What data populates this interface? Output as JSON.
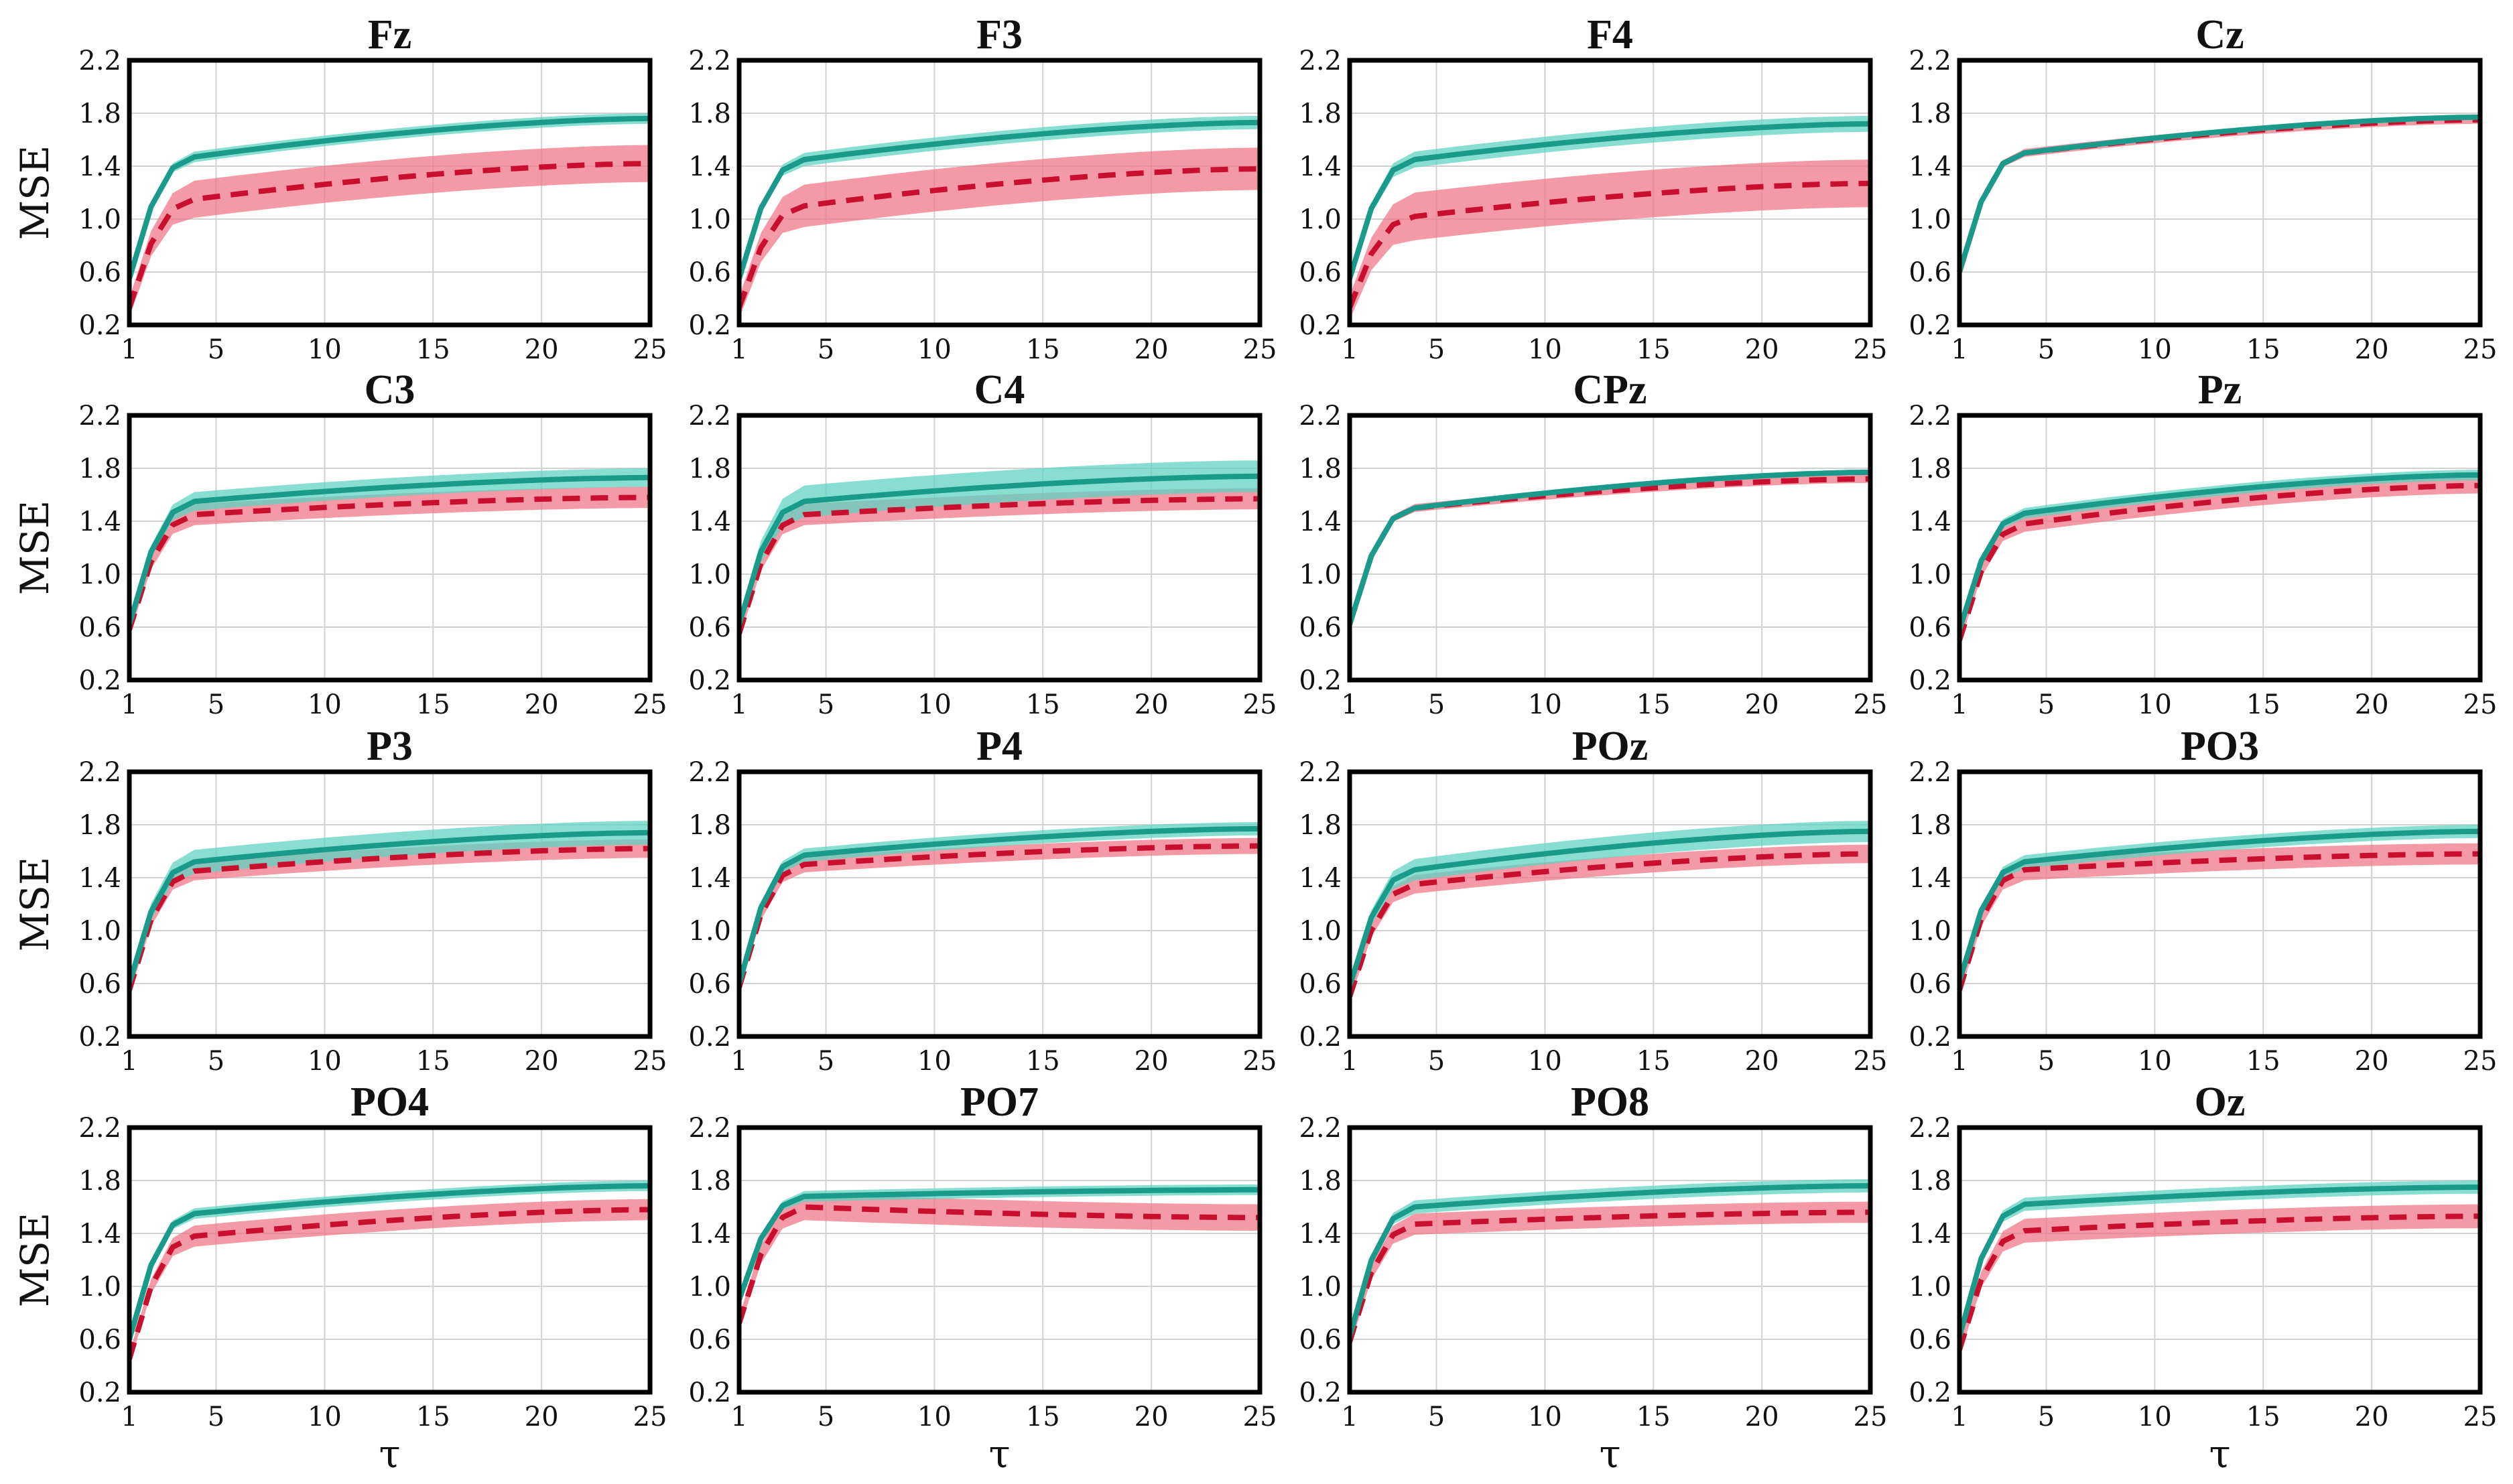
{
  "chart_data": {
    "type": "line",
    "layout": "4x4 small multiples",
    "x": [
      1,
      2,
      3,
      4,
      5,
      6,
      7,
      8,
      9,
      10,
      11,
      12,
      13,
      14,
      15,
      16,
      17,
      18,
      19,
      20,
      21,
      22,
      23,
      24,
      25
    ],
    "xlabel": "τ",
    "ylabel": "MSE",
    "xlim": [
      1,
      25
    ],
    "ylim": [
      0.2,
      2.2
    ],
    "xticks": [
      1,
      5,
      10,
      15,
      20,
      25
    ],
    "yticks": [
      "0.2",
      "0.6",
      "1.0",
      "1.4",
      "1.8",
      "2.2"
    ],
    "grid": true,
    "series_styles": {
      "A": {
        "color": "#1a9a8a",
        "band_color": "#5fd3c2",
        "dash": "solid"
      },
      "B": {
        "color": "#c8102e",
        "band_color": "#f0788a",
        "dash": "dashed"
      }
    },
    "panels": [
      {
        "title": "Fz",
        "A": {
          "start": 0.55,
          "plateau": 1.47,
          "end": 1.76,
          "band": 0.04
        },
        "B": {
          "start": 0.33,
          "plateau": 1.15,
          "end": 1.42,
          "band": 0.14
        }
      },
      {
        "title": "F3",
        "A": {
          "start": 0.55,
          "plateau": 1.45,
          "end": 1.73,
          "band": 0.05
        },
        "B": {
          "start": 0.33,
          "plateau": 1.1,
          "end": 1.38,
          "band": 0.16
        }
      },
      {
        "title": "F4",
        "A": {
          "start": 0.55,
          "plateau": 1.45,
          "end": 1.72,
          "band": 0.06
        },
        "B": {
          "start": 0.33,
          "plateau": 1.02,
          "end": 1.27,
          "band": 0.18
        }
      },
      {
        "title": "Cz",
        "A": {
          "start": 0.6,
          "plateau": 1.5,
          "end": 1.77,
          "band": 0.02
        },
        "B": {
          "start": 0.6,
          "plateau": 1.5,
          "end": 1.75,
          "band": 0.03
        }
      },
      {
        "title": "C3",
        "A": {
          "start": 0.62,
          "plateau": 1.55,
          "end": 1.73,
          "band": 0.07
        },
        "B": {
          "start": 0.58,
          "plateau": 1.45,
          "end": 1.58,
          "band": 0.08
        }
      },
      {
        "title": "C4",
        "A": {
          "start": 0.62,
          "plateau": 1.55,
          "end": 1.74,
          "band": 0.12
        },
        "B": {
          "start": 0.55,
          "plateau": 1.45,
          "end": 1.57,
          "band": 0.08
        }
      },
      {
        "title": "CPz",
        "A": {
          "start": 0.62,
          "plateau": 1.5,
          "end": 1.77,
          "band": 0.02
        },
        "B": {
          "start": 0.62,
          "plateau": 1.5,
          "end": 1.72,
          "band": 0.03
        }
      },
      {
        "title": "Pz",
        "A": {
          "start": 0.58,
          "plateau": 1.46,
          "end": 1.75,
          "band": 0.04
        },
        "B": {
          "start": 0.5,
          "plateau": 1.38,
          "end": 1.67,
          "band": 0.06
        }
      },
      {
        "title": "P3",
        "A": {
          "start": 0.6,
          "plateau": 1.52,
          "end": 1.74,
          "band": 0.09
        },
        "B": {
          "start": 0.55,
          "plateau": 1.45,
          "end": 1.62,
          "band": 0.07
        }
      },
      {
        "title": "P4",
        "A": {
          "start": 0.6,
          "plateau": 1.57,
          "end": 1.77,
          "band": 0.05
        },
        "B": {
          "start": 0.57,
          "plateau": 1.5,
          "end": 1.64,
          "band": 0.06
        }
      },
      {
        "title": "POz",
        "A": {
          "start": 0.58,
          "plateau": 1.46,
          "end": 1.75,
          "band": 0.08
        },
        "B": {
          "start": 0.5,
          "plateau": 1.35,
          "end": 1.58,
          "band": 0.07
        }
      },
      {
        "title": "PO3",
        "A": {
          "start": 0.62,
          "plateau": 1.52,
          "end": 1.75,
          "band": 0.05
        },
        "B": {
          "start": 0.55,
          "plateau": 1.46,
          "end": 1.58,
          "band": 0.08
        }
      },
      {
        "title": "PO4",
        "A": {
          "start": 0.6,
          "plateau": 1.55,
          "end": 1.76,
          "band": 0.04
        },
        "B": {
          "start": 0.45,
          "plateau": 1.38,
          "end": 1.58,
          "band": 0.08
        }
      },
      {
        "title": "PO7",
        "A": {
          "start": 0.9,
          "plateau": 1.68,
          "end": 1.73,
          "band": 0.04
        },
        "B": {
          "start": 0.72,
          "plateau": 1.6,
          "end": 1.52,
          "band": 0.1
        }
      },
      {
        "title": "PO8",
        "A": {
          "start": 0.62,
          "plateau": 1.6,
          "end": 1.76,
          "band": 0.05
        },
        "B": {
          "start": 0.58,
          "plateau": 1.47,
          "end": 1.56,
          "band": 0.08
        }
      },
      {
        "title": "Oz",
        "A": {
          "start": 0.62,
          "plateau": 1.62,
          "end": 1.75,
          "band": 0.05
        },
        "B": {
          "start": 0.52,
          "plateau": 1.42,
          "end": 1.53,
          "band": 0.09
        }
      }
    ]
  }
}
